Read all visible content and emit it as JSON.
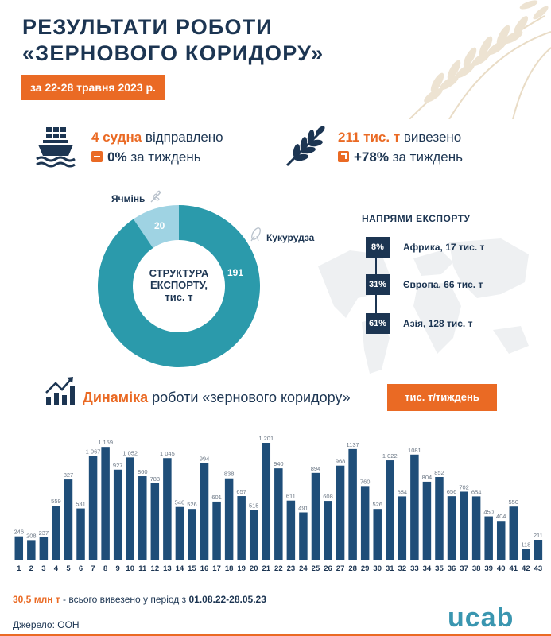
{
  "header": {
    "title_line1": "РЕЗУЛЬТАТИ РОБОТИ",
    "title_line2": "«ЗЕРНОВОГО КОРИДОРУ»",
    "date": "за 22-28 травня 2023 р."
  },
  "stats": {
    "ships": {
      "value": "4 судна",
      "label": "відправлено",
      "change": "0%",
      "change_label": "за тиждень",
      "icon": "ship-icon"
    },
    "exported": {
      "value": "211 тис. т",
      "label": "вивезено",
      "change": "+78%",
      "change_label": "за тиждень",
      "icon": "wheat-icon"
    }
  },
  "structure": {
    "center_label_1": "СТРУКТУРА",
    "center_label_2": "ЕКСПОРТУ,",
    "center_label_3": "тис. т",
    "colors": {
      "corn": "#2b9aab",
      "barley": "#9fd3e3"
    }
  },
  "directions": {
    "title": "НАПРЯМИ ЕКСПОРТУ",
    "items": [
      {
        "pct": "8%",
        "label": "Африка, 17 тис. т"
      },
      {
        "pct": "31%",
        "label": "Європа, 66 тис. т"
      },
      {
        "pct": "61%",
        "label": "Азія, 128 тис. т"
      }
    ]
  },
  "dynamics": {
    "title_bold": "Динаміка",
    "title_rest": "роботи «зернового коридору»",
    "unit": "тис. т/тиждень"
  },
  "chart_data": [
    {
      "type": "pie",
      "categories": [
        "Ячмінь",
        "Кукурудза"
      ],
      "values": [
        20,
        191
      ],
      "value_labels": [
        "20",
        "191"
      ],
      "title": "",
      "colors": [
        "#9fd3e3",
        "#2b9aab"
      ]
    },
    {
      "type": "bar",
      "categories": [
        "1",
        "2",
        "3",
        "4",
        "5",
        "6",
        "7",
        "8",
        "9",
        "10",
        "11",
        "12",
        "13",
        "14",
        "15",
        "16",
        "17",
        "18",
        "19",
        "20",
        "21",
        "22",
        "23",
        "24",
        "25",
        "26",
        "27",
        "28",
        "29",
        "30",
        "31",
        "32",
        "33",
        "34",
        "35",
        "36",
        "37",
        "38",
        "39",
        "40",
        "41",
        "42",
        "43"
      ],
      "values": [
        246,
        208,
        237,
        559,
        827,
        531,
        1067,
        1159,
        927,
        1052,
        860,
        788,
        1045,
        546,
        526,
        994,
        601,
        838,
        657,
        515,
        1201,
        940,
        611,
        491,
        894,
        608,
        968,
        1137,
        760,
        526,
        1022,
        654,
        1081,
        804,
        852,
        656,
        702,
        654,
        450,
        404,
        550,
        118,
        211
      ],
      "value_labels": [
        "246",
        "208",
        "237",
        "559",
        "827",
        "531",
        "1 067",
        "1 159",
        "927",
        "1 052",
        "860",
        "788",
        "1 045",
        "546",
        "526",
        "994",
        "601",
        "838",
        "657",
        "515",
        "1 201",
        "940",
        "611",
        "491",
        "894",
        "608",
        "968",
        "1137",
        "760",
        "526",
        "1 022",
        "654",
        "1081",
        "804",
        "852",
        "656",
        "702",
        "654",
        "450",
        "404",
        "550",
        "118",
        "211"
      ],
      "ylim": [
        0,
        1201
      ],
      "xlabel": "",
      "ylabel": "",
      "bar_color": "#1f4e79"
    }
  ],
  "footer": {
    "total_bold": "30,5 млн т",
    "total_rest": "- всього вивезено у період з",
    "period": "01.08.22-28.05.23",
    "source": "Джерело: ООН",
    "logo": "ucab"
  }
}
